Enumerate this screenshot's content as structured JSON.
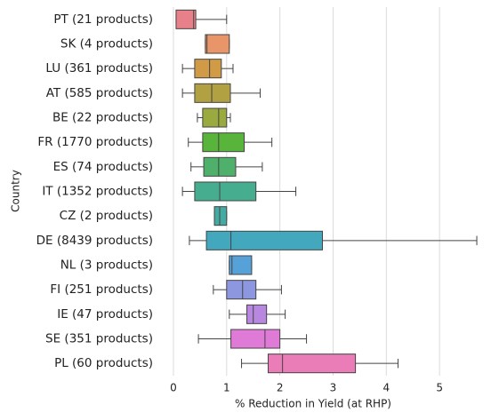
{
  "chart_data": {
    "type": "box",
    "orientation": "horizontal",
    "xlabel": "% Reduction in Yield (at RHP)",
    "ylabel": "Country",
    "categories": [
      "PT (21 products)",
      "SK (4 products)",
      "LU (361 products)",
      "AT (585 products)",
      "BE (22 products)",
      "FR (1770 products)",
      "ES (74 products)",
      "IT (1352 products)",
      "CZ (2 products)",
      "DE (8439 products)",
      "NL (3 products)",
      "FI (251 products)",
      "IE (47 products)",
      "SE (351 products)",
      "PL (60 products)"
    ],
    "boxes": [
      {
        "low": 0.05,
        "q1": 0.05,
        "median": 0.38,
        "q3": 0.42,
        "high": 1.0
      },
      {
        "low": 0.6,
        "q1": 0.6,
        "median": 0.63,
        "q3": 1.05,
        "high": 1.05
      },
      {
        "low": 0.17,
        "q1": 0.4,
        "median": 0.68,
        "q3": 0.9,
        "high": 1.12
      },
      {
        "low": 0.17,
        "q1": 0.4,
        "median": 0.72,
        "q3": 1.07,
        "high": 1.63
      },
      {
        "low": 0.45,
        "q1": 0.55,
        "median": 0.85,
        "q3": 1.0,
        "high": 1.07
      },
      {
        "low": 0.28,
        "q1": 0.55,
        "median": 0.85,
        "q3": 1.33,
        "high": 1.85
      },
      {
        "low": 0.33,
        "q1": 0.57,
        "median": 0.85,
        "q3": 1.17,
        "high": 1.67
      },
      {
        "low": 0.17,
        "q1": 0.4,
        "median": 0.87,
        "q3": 1.55,
        "high": 2.3
      },
      {
        "low": 0.77,
        "q1": 0.77,
        "median": 0.87,
        "q3": 1.0,
        "high": 1.0
      },
      {
        "low": 0.3,
        "q1": 0.62,
        "median": 1.08,
        "q3": 2.8,
        "high": 5.7
      },
      {
        "low": 1.05,
        "q1": 1.05,
        "median": 1.1,
        "q3": 1.47,
        "high": 1.47
      },
      {
        "low": 0.75,
        "q1": 1.0,
        "median": 1.3,
        "q3": 1.55,
        "high": 2.03
      },
      {
        "low": 1.05,
        "q1": 1.38,
        "median": 1.5,
        "q3": 1.75,
        "high": 2.1
      },
      {
        "low": 0.47,
        "q1": 1.08,
        "median": 1.72,
        "q3": 2.0,
        "high": 2.5
      },
      {
        "low": 1.28,
        "q1": 1.78,
        "median": 2.05,
        "q3": 3.42,
        "high": 4.22
      }
    ],
    "colors": [
      "#e8808a",
      "#e8956a",
      "#d09a46",
      "#b1a142",
      "#9aaa3e",
      "#59b43c",
      "#4fb06c",
      "#47ad8f",
      "#44aaa2",
      "#43a8bd",
      "#56a2d8",
      "#8c97e0",
      "#b887e0",
      "#df7ad6",
      "#ea7cb8"
    ],
    "xlim": [
      -0.25,
      5.95
    ],
    "xticks": [
      0,
      1,
      2,
      3,
      4,
      5
    ],
    "grid": true
  }
}
